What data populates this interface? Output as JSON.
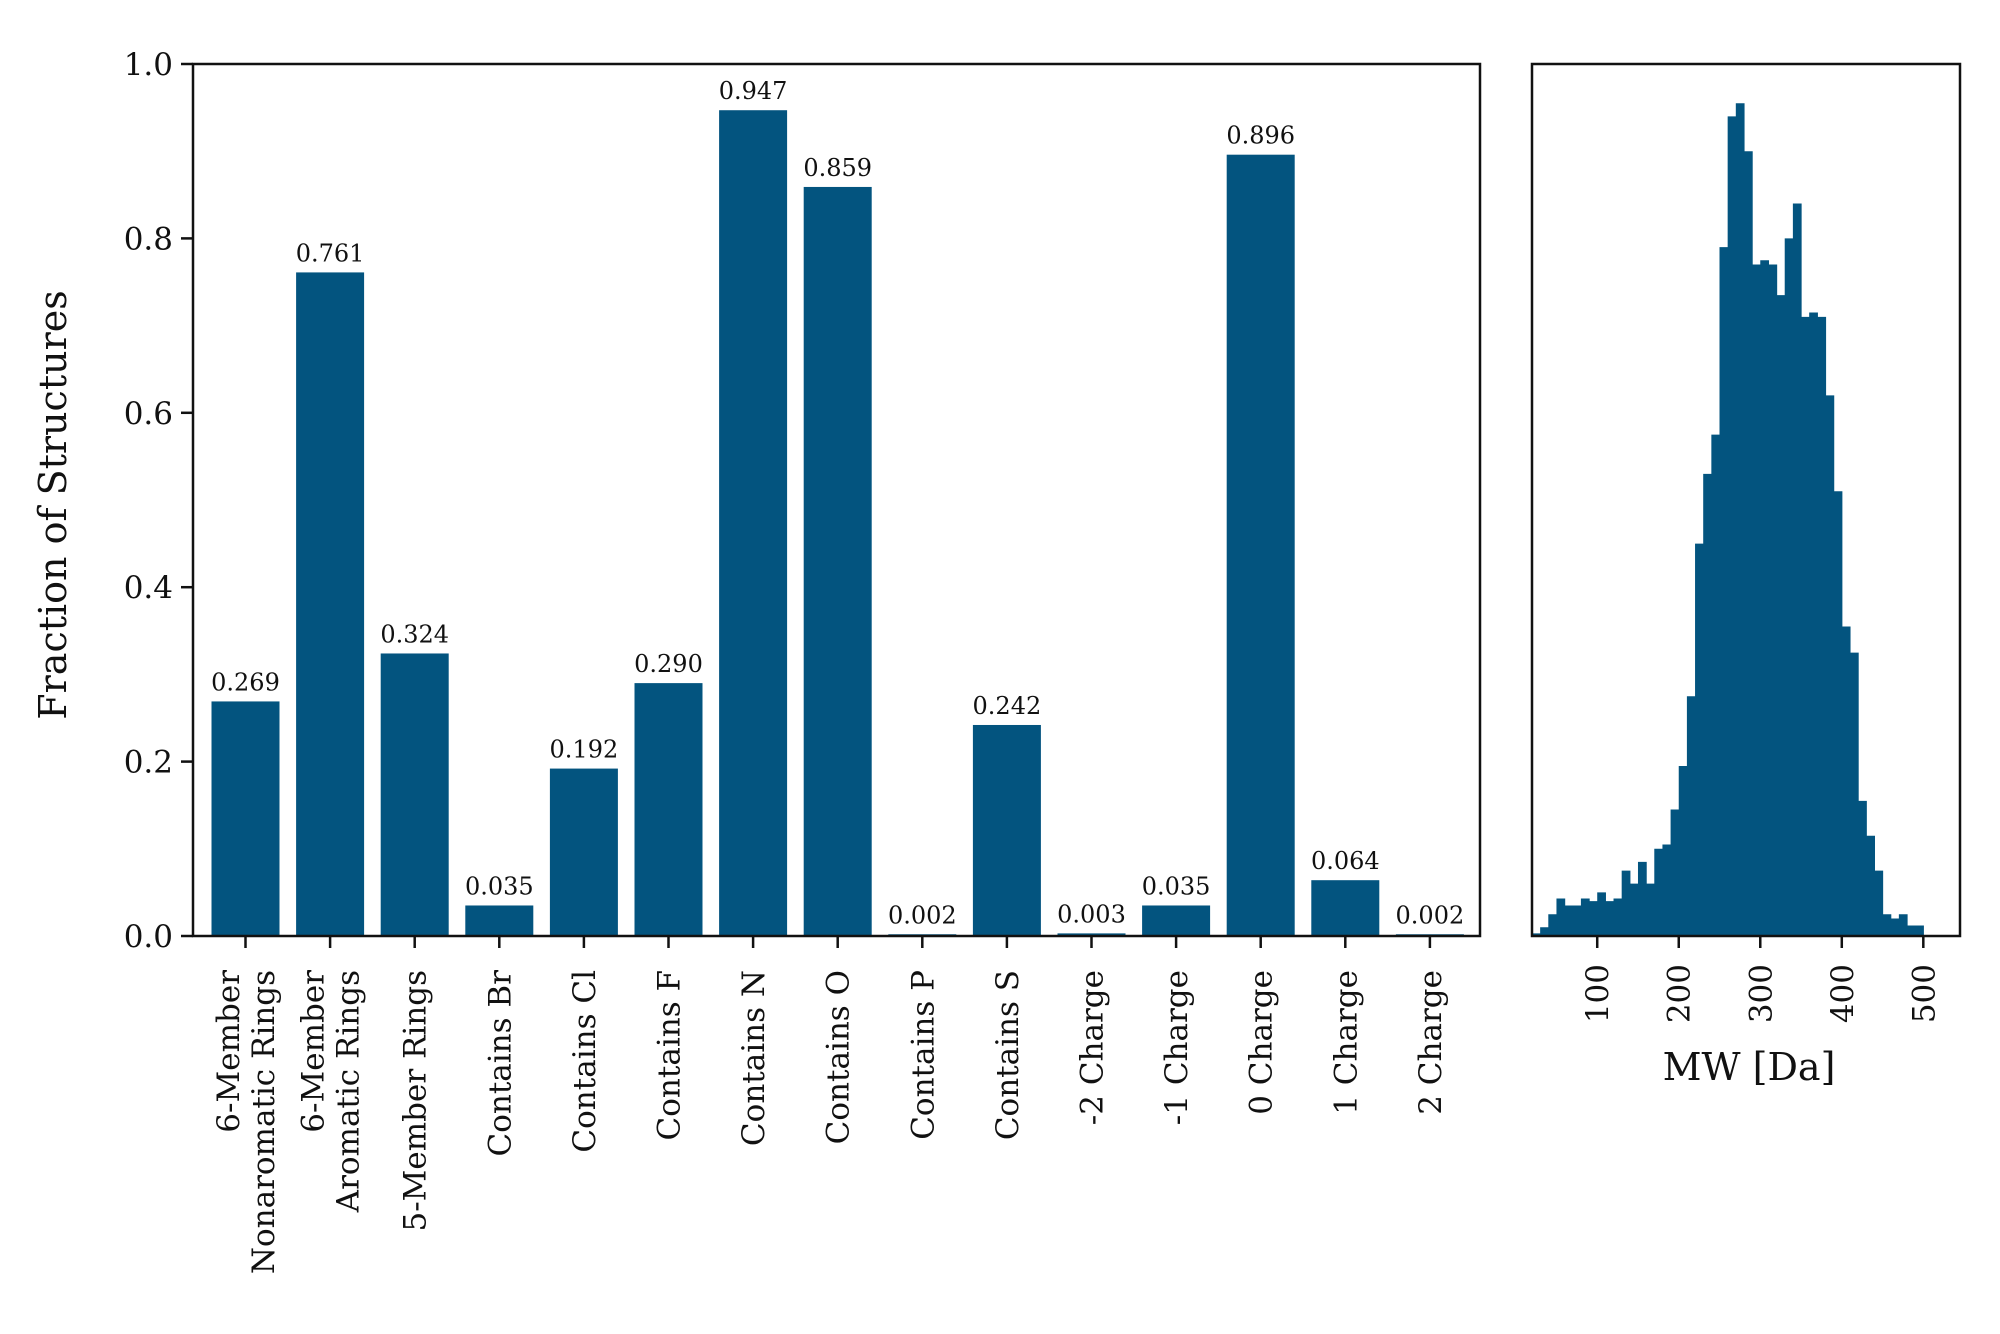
{
  "colors": {
    "bar": "#03547f",
    "axis": "#111111",
    "background": "#ffffff"
  },
  "chart_data": [
    {
      "type": "bar",
      "title": "",
      "xlabel": "",
      "ylabel": "Fraction of Structures",
      "ylim": [
        0,
        1.0
      ],
      "yticks": [
        "0.0",
        "0.2",
        "0.4",
        "0.6",
        "0.8",
        "1.0"
      ],
      "categories": [
        "6-Member\nNonaromatic Rings",
        "6-Member\nAromatic Rings",
        "5-Member Rings",
        "Contains Br",
        "Contains Cl",
        "Contains F",
        "Contains N",
        "Contains O",
        "Contains P",
        "Contains S",
        "-2 Charge",
        "-1 Charge",
        "0 Charge",
        "1 Charge",
        "2 Charge"
      ],
      "values": [
        0.269,
        0.761,
        0.324,
        0.035,
        0.192,
        0.29,
        0.947,
        0.859,
        0.002,
        0.242,
        0.003,
        0.035,
        0.896,
        0.064,
        0.002
      ],
      "data_labels": [
        "0.269",
        "0.761",
        "0.324",
        "0.035",
        "0.192",
        "0.290",
        "0.947",
        "0.859",
        "0.002",
        "0.242",
        "0.003",
        "0.035",
        "0.896",
        "0.064",
        "0.002"
      ],
      "grid": false
    },
    {
      "type": "histogram",
      "title": "",
      "xlabel": "MW [Da]",
      "ylabel": "",
      "xlim": [
        20,
        545
      ],
      "xticks": [
        "100",
        "200",
        "300",
        "400",
        "500"
      ],
      "xtick_values": [
        100,
        200,
        300,
        400,
        500
      ],
      "bin_start": 20,
      "bin_width": 10,
      "relative_heights": [
        0.003,
        0.01,
        0.025,
        0.043,
        0.035,
        0.035,
        0.043,
        0.04,
        0.05,
        0.04,
        0.043,
        0.075,
        0.06,
        0.085,
        0.06,
        0.1,
        0.105,
        0.145,
        0.195,
        0.275,
        0.45,
        0.53,
        0.575,
        0.79,
        0.94,
        0.955,
        0.9,
        0.77,
        0.775,
        0.77,
        0.735,
        0.8,
        0.84,
        0.71,
        0.715,
        0.71,
        0.62,
        0.51,
        0.355,
        0.325,
        0.155,
        0.115,
        0.075,
        0.025,
        0.02,
        0.025,
        0.012,
        0.012
      ],
      "grid": false
    }
  ]
}
